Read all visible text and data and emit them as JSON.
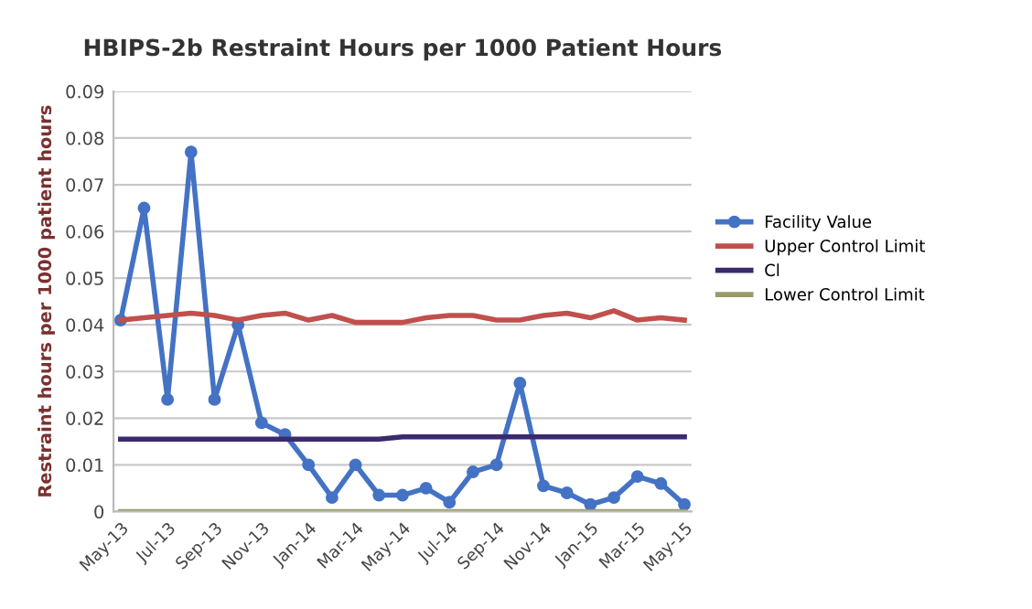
{
  "chart_data": {
    "type": "line",
    "title": "HBIPS-2b Restraint Hours per 1000 Patient Hours",
    "ylabel": "Restraint hours per 1000 patient hours",
    "categories": [
      "May-13",
      null,
      "Jul-13",
      null,
      "Sep-13",
      null,
      "Nov-13",
      null,
      "Jan-14",
      null,
      "Mar-14",
      null,
      "May-14",
      null,
      "Jul-14",
      null,
      "Sep-14",
      null,
      "Nov-14",
      null,
      "Jan-15",
      null,
      "Mar-15",
      null,
      "May-15"
    ],
    "series": [
      {
        "name": "Facility Value",
        "color": "#4472c4",
        "marker": "circle",
        "values": [
          0.041,
          0.065,
          0.024,
          0.077,
          0.024,
          0.04,
          0.019,
          0.0165,
          0.01,
          0.003,
          0.01,
          0.0035,
          0.0035,
          0.005,
          0.002,
          0.0085,
          0.01,
          0.0275,
          0.0055,
          0.004,
          0.0015,
          0.003,
          0.0075,
          0.006,
          0.0015
        ]
      },
      {
        "name": "Upper Control Limit",
        "color": "#c0504d",
        "values": [
          0.041,
          0.0415,
          0.042,
          0.0425,
          0.042,
          0.041,
          0.042,
          0.0425,
          0.041,
          0.042,
          0.0405,
          0.0405,
          0.0405,
          0.0415,
          0.042,
          0.042,
          0.041,
          0.041,
          0.042,
          0.0425,
          0.0415,
          0.043,
          0.041,
          0.0415,
          0.041
        ]
      },
      {
        "name": "Cl",
        "color": "#3b2a6e",
        "values": [
          0.0155,
          0.0155,
          0.0155,
          0.0155,
          0.0155,
          0.0155,
          0.0155,
          0.0155,
          0.0155,
          0.0155,
          0.0155,
          0.0155,
          0.016,
          0.016,
          0.016,
          0.016,
          0.016,
          0.016,
          0.016,
          0.016,
          0.016,
          0.016,
          0.016,
          0.016,
          0.016
        ]
      },
      {
        "name": "Lower Control Limit",
        "color": "#9b9b6a",
        "values": [
          0,
          0,
          0,
          0,
          0,
          0,
          0,
          0,
          0,
          0,
          0,
          0,
          0,
          0,
          0,
          0,
          0,
          0,
          0,
          0,
          0,
          0,
          0,
          0,
          0
        ]
      }
    ],
    "ylim": [
      0,
      0.09
    ],
    "yticks": [
      {
        "value": 0,
        "label": "0"
      },
      0.01,
      0.02,
      0.03,
      0.04,
      0.05,
      0.06,
      0.07,
      0.08,
      0.09
    ],
    "grid": "y",
    "legend": "right"
  }
}
